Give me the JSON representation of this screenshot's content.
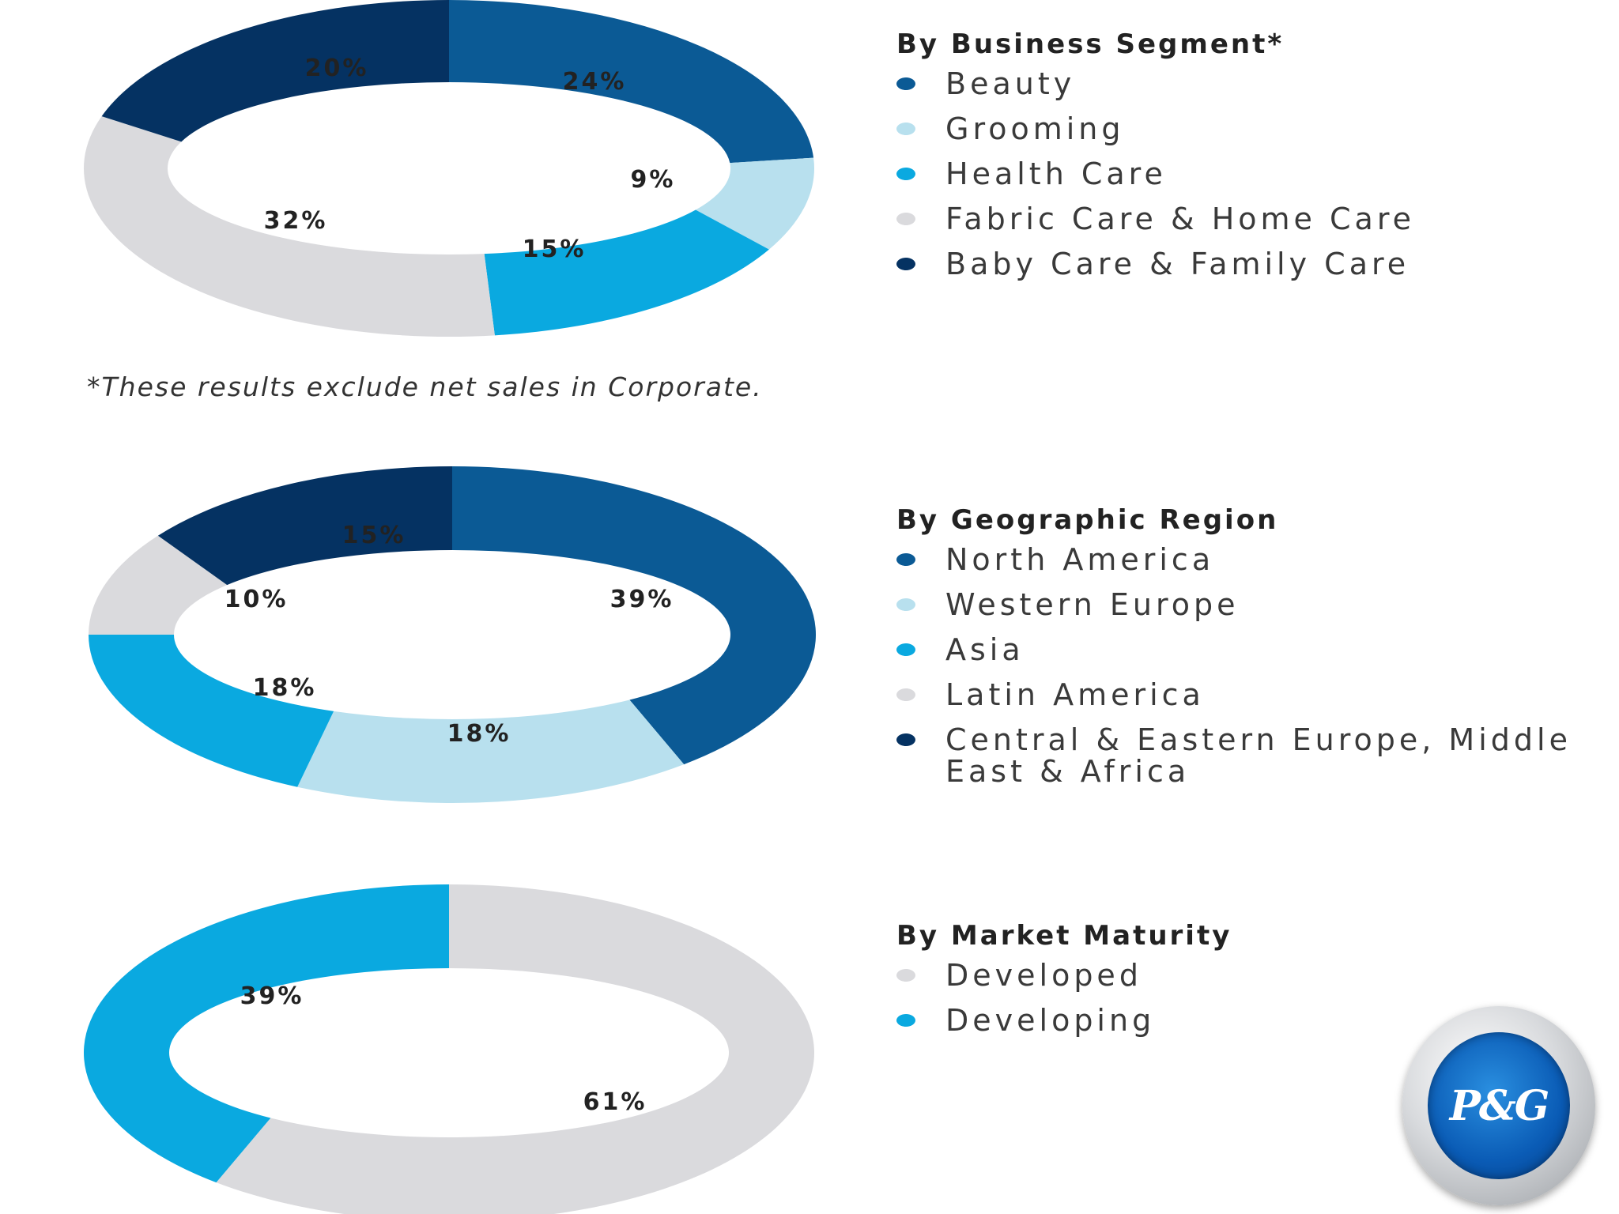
{
  "colors": {
    "beauty": "#0b5a95",
    "grooming": "#b8e0ee",
    "health_care": "#0aa9e0",
    "fabric_home": "#dadadd",
    "baby_family": "#053262",
    "developed": "#dadadd",
    "developing": "#0aa9e0"
  },
  "footnote": "*These results exclude net sales in Corporate.",
  "logo": {
    "text": "P&G"
  },
  "chart_data": [
    {
      "type": "pie",
      "title": "By Business Segment*",
      "slices": [
        {
          "label": "Beauty",
          "value": 24,
          "value_label": "24%",
          "color": "#0b5a95"
        },
        {
          "label": "Grooming",
          "value": 9,
          "value_label": "9%",
          "color": "#b8e0ee"
        },
        {
          "label": "Health Care",
          "value": 15,
          "value_label": "15%",
          "color": "#0aa9e0"
        },
        {
          "label": "Fabric Care & Home Care",
          "value": 32,
          "value_label": "32%",
          "color": "#dadadd"
        },
        {
          "label": "Baby Care & Family Care",
          "value": 20,
          "value_label": "20%",
          "color": "#053262"
        }
      ]
    },
    {
      "type": "pie",
      "title": "By Geographic Region",
      "slices": [
        {
          "label": "North America",
          "value": 39,
          "value_label": "39%",
          "color": "#0b5a95"
        },
        {
          "label": "Western Europe",
          "value": 18,
          "value_label": "18%",
          "color": "#b8e0ee"
        },
        {
          "label": "Asia",
          "value": 18,
          "value_label": "18%",
          "color": "#0aa9e0"
        },
        {
          "label": "Latin America",
          "value": 10,
          "value_label": "10%",
          "color": "#dadadd"
        },
        {
          "label": "Central & Eastern Europe, Middle East & Africa",
          "value": 15,
          "value_label": "15%",
          "color": "#053262"
        }
      ]
    },
    {
      "type": "pie",
      "title": "By Market Maturity",
      "slices": [
        {
          "label": "Developed",
          "value": 61,
          "value_label": "61%",
          "color": "#dadadd"
        },
        {
          "label": "Developing",
          "value": 39,
          "value_label": "39%",
          "color": "#0aa9e0"
        }
      ]
    }
  ]
}
